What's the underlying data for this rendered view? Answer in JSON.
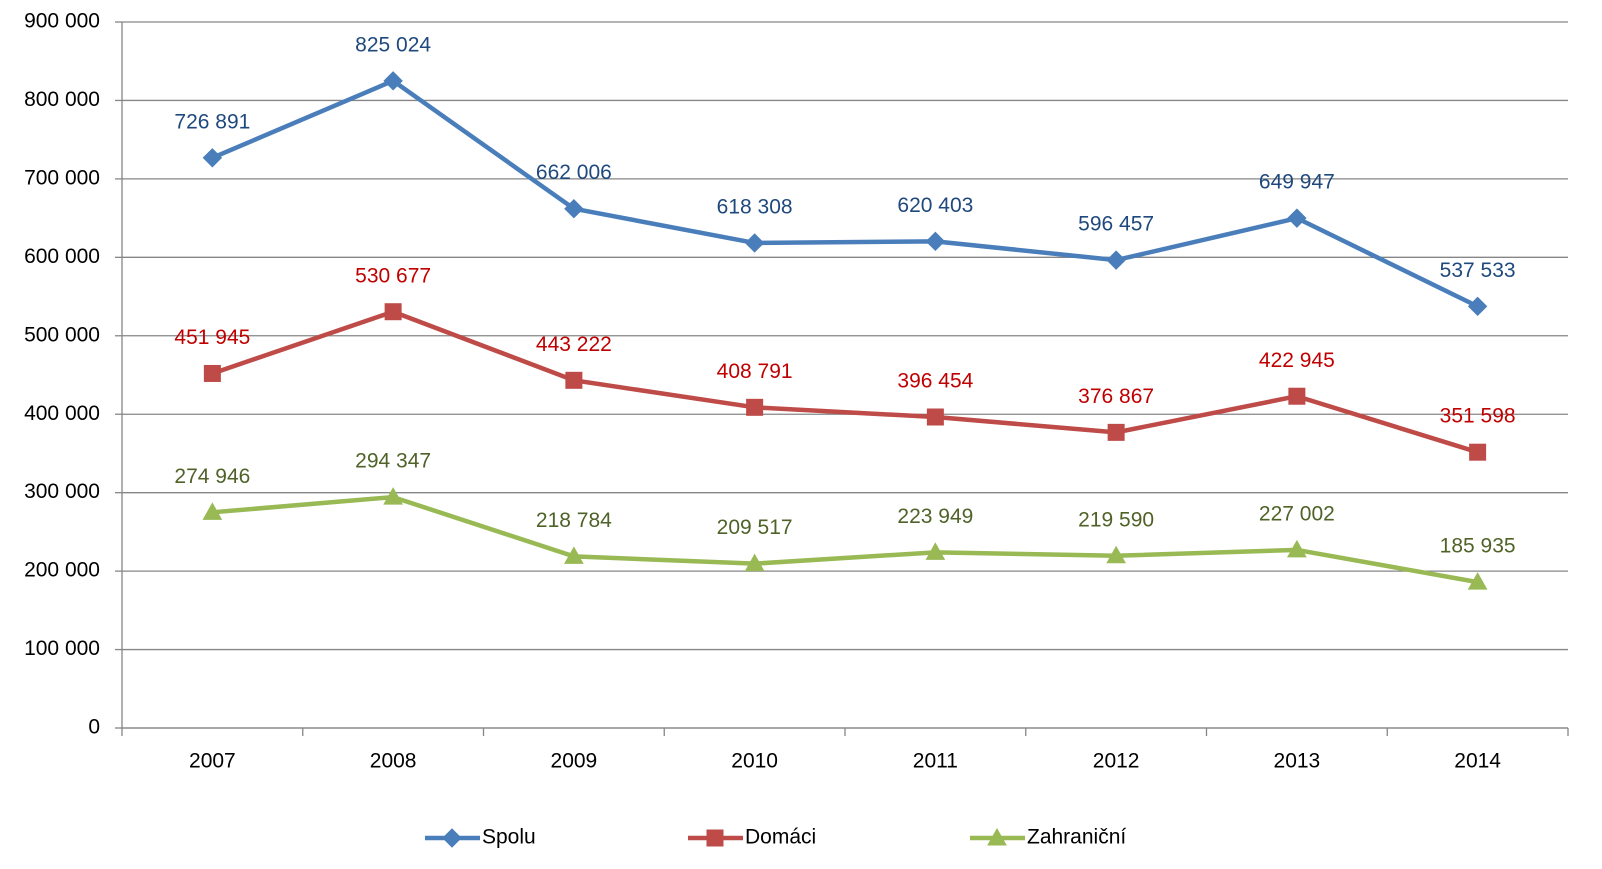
{
  "chart_data": {
    "type": "line",
    "categories": [
      "2007",
      "2008",
      "2009",
      "2010",
      "2011",
      "2012",
      "2013",
      "2014"
    ],
    "series": [
      {
        "name": "Spolu",
        "color": "#4a7ebb",
        "label_color": "#1f497d",
        "marker": "diamond",
        "values": [
          726891,
          825024,
          662006,
          618308,
          620403,
          596457,
          649947,
          537533
        ],
        "value_labels": [
          "726 891",
          "825 024",
          "662 006",
          "618 308",
          "620 403",
          "596 457",
          "649 947",
          "537 533"
        ]
      },
      {
        "name": "Domáci",
        "color": "#be4b48",
        "label_color": "#c00000",
        "marker": "square",
        "values": [
          451945,
          530677,
          443222,
          408791,
          396454,
          376867,
          422945,
          351598
        ],
        "value_labels": [
          "451 945",
          "530 677",
          "443 222",
          "408 791",
          "396 454",
          "376 867",
          "422 945",
          "351 598"
        ]
      },
      {
        "name": "Zahraniční",
        "color": "#98b954",
        "label_color": "#4f6228",
        "marker": "triangle",
        "values": [
          274946,
          294347,
          218784,
          209517,
          223949,
          219590,
          227002,
          185935
        ],
        "value_labels": [
          "274 946",
          "294 347",
          "218 784",
          "209 517",
          "223 949",
          "219 590",
          "227 002",
          "185 935"
        ]
      }
    ],
    "ylim": [
      0,
      900000
    ],
    "yticks": [
      0,
      {
        "value": 100000,
        "label": "100 000"
      },
      {
        "value": 200000,
        "label": "200 000"
      },
      {
        "value": 300000,
        "label": "300 000"
      },
      {
        "value": 400000,
        "label": "400 000"
      },
      {
        "value": 500000,
        "label": "500 000"
      },
      {
        "value": 600000,
        "label": "600 000"
      },
      {
        "value": 700000,
        "label": "700 000"
      },
      {
        "value": 800000,
        "label": "800 000"
      },
      {
        "value": 900000,
        "label": "900 000"
      }
    ],
    "grid": true,
    "legend": "bottom"
  }
}
